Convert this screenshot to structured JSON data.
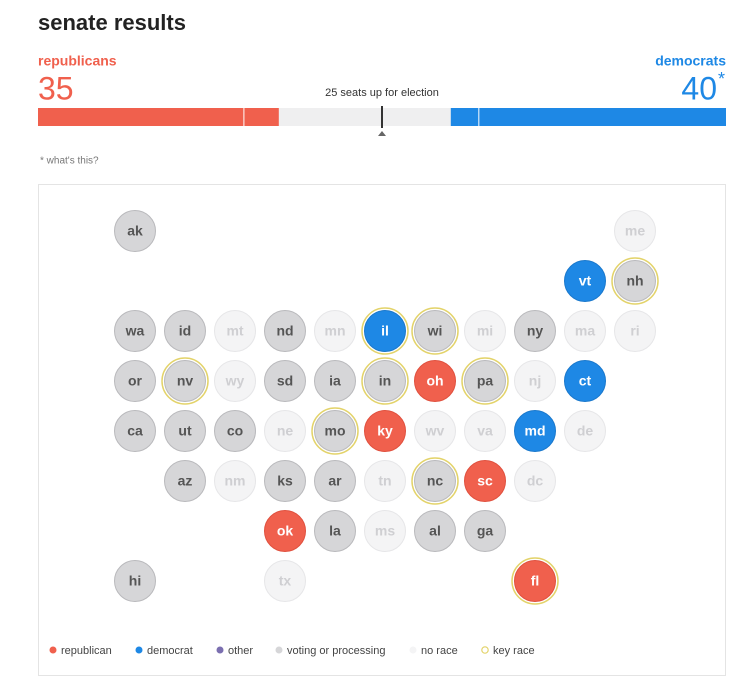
{
  "header": {
    "title": "senate results"
  },
  "republicans": {
    "label": "republicans",
    "seats": 35,
    "color": "#f0604d"
  },
  "democrats": {
    "label": "democrats",
    "seats": 40,
    "note": "*",
    "color": "#1e88e5"
  },
  "seats_up": "25 seats up for election",
  "footnote": "* what's this?",
  "seat_bar": {
    "scale": [
      0,
      100
    ],
    "republican_segments": [
      30,
      5
    ],
    "democrat_segments": [
      4,
      36
    ]
  },
  "colors": {
    "r": "#f0604d",
    "d": "#1e88e5",
    "voting": "#d6d6d8",
    "none": "#f4f4f5",
    "other": "#7b6fb0",
    "key": "#e3d36a"
  },
  "states": [
    {
      "label": "ak",
      "status": "voting"
    },
    {
      "label": "me",
      "status": "none"
    },
    {
      "label": "vt",
      "status": "d"
    },
    {
      "label": "nh",
      "status": "voting",
      "key": true
    },
    {
      "label": "wa",
      "status": "voting"
    },
    {
      "label": "id",
      "status": "voting"
    },
    {
      "label": "mt",
      "status": "none"
    },
    {
      "label": "nd",
      "status": "voting"
    },
    {
      "label": "mn",
      "status": "none"
    },
    {
      "label": "il",
      "status": "d",
      "key": true
    },
    {
      "label": "wi",
      "status": "voting",
      "key": true
    },
    {
      "label": "mi",
      "status": "none"
    },
    {
      "label": "ny",
      "status": "voting"
    },
    {
      "label": "ma",
      "status": "none"
    },
    {
      "label": "ri",
      "status": "none"
    },
    {
      "label": "or",
      "status": "voting"
    },
    {
      "label": "nv",
      "status": "voting",
      "key": true
    },
    {
      "label": "wy",
      "status": "none"
    },
    {
      "label": "sd",
      "status": "voting"
    },
    {
      "label": "ia",
      "status": "voting"
    },
    {
      "label": "in",
      "status": "voting",
      "key": true
    },
    {
      "label": "oh",
      "status": "r"
    },
    {
      "label": "pa",
      "status": "voting",
      "key": true
    },
    {
      "label": "nj",
      "status": "none"
    },
    {
      "label": "ct",
      "status": "d"
    },
    {
      "label": "ca",
      "status": "voting"
    },
    {
      "label": "ut",
      "status": "voting"
    },
    {
      "label": "co",
      "status": "voting"
    },
    {
      "label": "ne",
      "status": "none"
    },
    {
      "label": "mo",
      "status": "voting",
      "key": true
    },
    {
      "label": "ky",
      "status": "r"
    },
    {
      "label": "wv",
      "status": "none"
    },
    {
      "label": "va",
      "status": "none"
    },
    {
      "label": "md",
      "status": "d"
    },
    {
      "label": "de",
      "status": "none"
    },
    {
      "label": "az",
      "status": "voting"
    },
    {
      "label": "nm",
      "status": "none"
    },
    {
      "label": "ks",
      "status": "voting"
    },
    {
      "label": "ar",
      "status": "voting"
    },
    {
      "label": "tn",
      "status": "none"
    },
    {
      "label": "nc",
      "status": "voting",
      "key": true
    },
    {
      "label": "sc",
      "status": "r"
    },
    {
      "label": "dc",
      "status": "none"
    },
    {
      "label": "ok",
      "status": "r"
    },
    {
      "label": "la",
      "status": "voting"
    },
    {
      "label": "ms",
      "status": "none"
    },
    {
      "label": "al",
      "status": "voting"
    },
    {
      "label": "ga",
      "status": "voting"
    },
    {
      "label": "hi",
      "status": "voting"
    },
    {
      "label": "tx",
      "status": "none"
    },
    {
      "label": "fl",
      "status": "r",
      "key": true
    }
  ],
  "legend": [
    {
      "label": "republican",
      "status": "r"
    },
    {
      "label": "democrat",
      "status": "d"
    },
    {
      "label": "other",
      "status": "other"
    },
    {
      "label": "voting or processing",
      "status": "voting"
    },
    {
      "label": "no race",
      "status": "none"
    },
    {
      "label": "key race",
      "status": "key"
    }
  ]
}
